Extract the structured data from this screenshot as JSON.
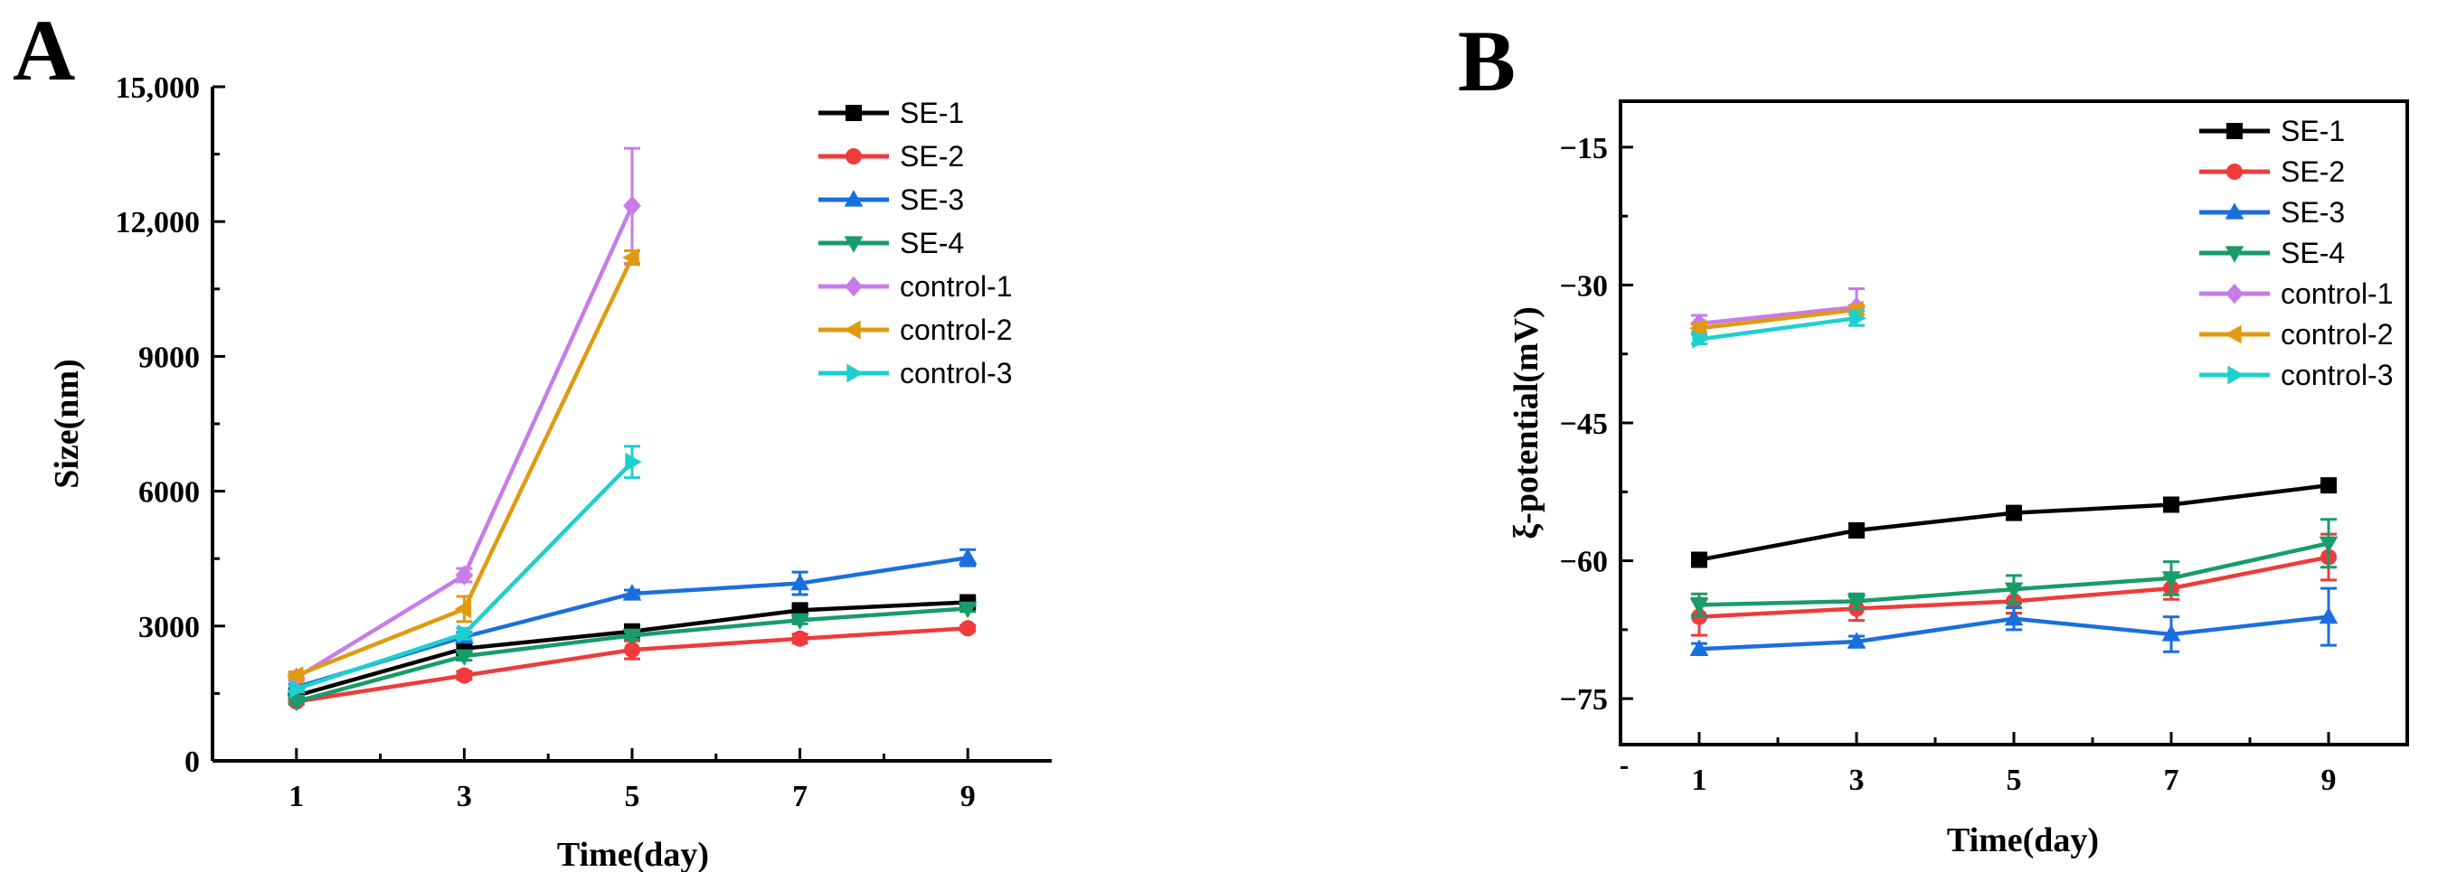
{
  "chart_data": [
    {
      "panel": "A",
      "type": "line",
      "xlabel": "Time(day)",
      "ylabel": "Size(nm)",
      "xlim": [
        0,
        10
      ],
      "ylim": [
        0,
        15000
      ],
      "xticks": [
        1,
        3,
        5,
        7,
        9
      ],
      "yticks": [
        0,
        3000,
        6000,
        9000,
        12000,
        15000
      ],
      "ytick_labels": [
        "0",
        "3000",
        "6000",
        "9000",
        "12,000",
        "15,000"
      ],
      "legend_position": "top-right",
      "series": [
        {
          "name": "SE-1",
          "color": "#000000",
          "marker": "square",
          "x": [
            1,
            3,
            5,
            7,
            9
          ],
          "y": [
            1450,
            2500,
            2880,
            3350,
            3530
          ],
          "err": [
            60,
            120,
            100,
            80,
            70
          ]
        },
        {
          "name": "SE-2",
          "color": "#ef3b3b",
          "marker": "circle",
          "x": [
            1,
            3,
            5,
            7,
            9
          ],
          "y": [
            1320,
            1900,
            2470,
            2720,
            2950
          ],
          "err": [
            60,
            90,
            200,
            100,
            60
          ]
        },
        {
          "name": "SE-3",
          "color": "#1a6fdf",
          "marker": "triangle-up",
          "x": [
            1,
            3,
            5,
            7,
            9
          ],
          "y": [
            1640,
            2760,
            3720,
            3950,
            4520
          ],
          "err": [
            60,
            100,
            80,
            250,
            180
          ]
        },
        {
          "name": "SE-4",
          "color": "#179c6a",
          "marker": "triangle-down",
          "x": [
            1,
            3,
            5,
            7,
            9
          ],
          "y": [
            1320,
            2330,
            2790,
            3130,
            3390
          ],
          "err": [
            50,
            90,
            80,
            80,
            70
          ]
        },
        {
          "name": "control-1",
          "color": "#c77ce8",
          "marker": "diamond",
          "x": [
            1,
            3,
            5
          ],
          "y": [
            1850,
            4130,
            12350
          ],
          "err": [
            80,
            150,
            1280
          ]
        },
        {
          "name": "control-2",
          "color": "#e09a10",
          "marker": "triangle-left",
          "x": [
            1,
            3,
            5
          ],
          "y": [
            1900,
            3380,
            11200
          ],
          "err": [
            80,
            280,
            150
          ]
        },
        {
          "name": "control-3",
          "color": "#1ecfcf",
          "marker": "triangle-right",
          "x": [
            1,
            3,
            5
          ],
          "y": [
            1600,
            2830,
            6650
          ],
          "err": [
            60,
            120,
            350
          ]
        }
      ]
    },
    {
      "panel": "B",
      "type": "line",
      "xlabel": "Time(day)",
      "ylabel": "ξ-potential(mV)",
      "xlim": [
        0,
        10
      ],
      "ylim": [
        -80,
        -10
      ],
      "xticks": [
        1,
        3,
        5,
        7,
        9
      ],
      "yticks": [
        -15,
        -30,
        -45,
        -60,
        -75
      ],
      "ytick_labels": [
        "−15",
        "−30",
        "−45",
        "−60",
        "−75"
      ],
      "legend_position": "top-right",
      "series": [
        {
          "name": "SE-1",
          "color": "#000000",
          "marker": "square",
          "x": [
            1,
            3,
            5,
            7,
            9
          ],
          "y": [
            -59.9,
            -56.7,
            -54.8,
            -53.9,
            -51.8
          ],
          "err": [
            0.4,
            0.4,
            0.4,
            0.4,
            0.4
          ]
        },
        {
          "name": "SE-2",
          "color": "#ef3b3b",
          "marker": "circle",
          "x": [
            1,
            3,
            5,
            7,
            9
          ],
          "y": [
            -66.1,
            -65.2,
            -64.4,
            -63.0,
            -59.6
          ],
          "err": [
            2.0,
            1.3,
            1.3,
            1.2,
            2.5
          ]
        },
        {
          "name": "SE-3",
          "color": "#1a6fdf",
          "marker": "triangle-up",
          "x": [
            1,
            3,
            5,
            7,
            9
          ],
          "y": [
            -69.6,
            -68.8,
            -66.3,
            -68.0,
            -66.1
          ],
          "err": [
            0.6,
            0.6,
            1.2,
            1.9,
            3.1
          ]
        },
        {
          "name": "SE-4",
          "color": "#179c6a",
          "marker": "triangle-down",
          "x": [
            1,
            3,
            5,
            7,
            9
          ],
          "y": [
            -64.8,
            -64.4,
            -63.1,
            -61.9,
            -58.1
          ],
          "err": [
            1.2,
            0.8,
            1.5,
            1.8,
            2.6
          ]
        },
        {
          "name": "control-1",
          "color": "#c77ce8",
          "marker": "diamond",
          "x": [
            1,
            3
          ],
          "y": [
            -34.2,
            -32.4
          ],
          "err": [
            0.9,
            2.0
          ]
        },
        {
          "name": "control-2",
          "color": "#e09a10",
          "marker": "triangle-left",
          "x": [
            1,
            3
          ],
          "y": [
            -34.7,
            -32.7
          ],
          "err": [
            0.5,
            0.5
          ]
        },
        {
          "name": "control-3",
          "color": "#1ecfcf",
          "marker": "triangle-right",
          "x": [
            1,
            3
          ],
          "y": [
            -35.9,
            -33.6
          ],
          "err": [
            0.5,
            0.8
          ]
        }
      ]
    }
  ]
}
